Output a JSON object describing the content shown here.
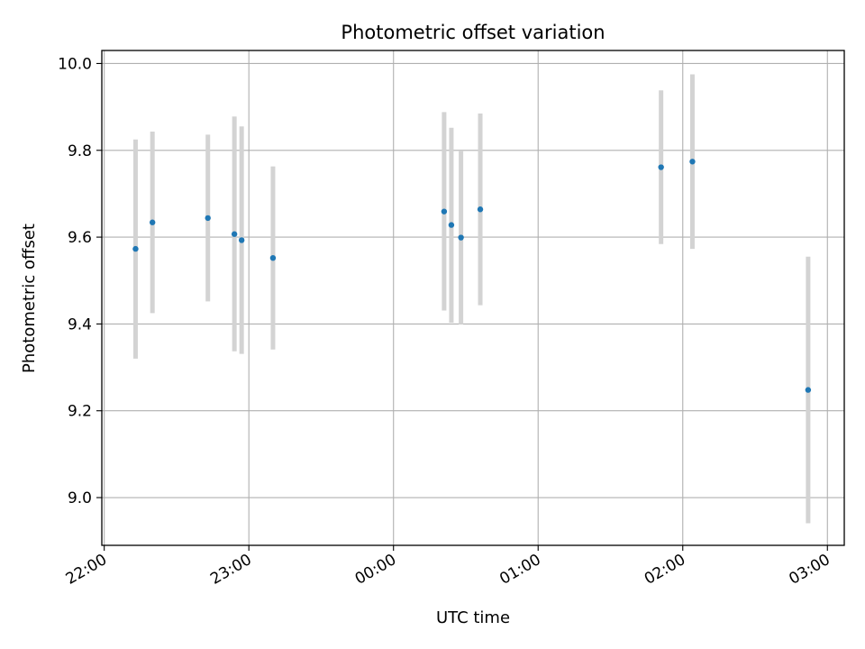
{
  "chart_data": {
    "type": "scatter",
    "title": "Photometric offset variation",
    "xlabel": "UTC time",
    "ylabel": "Photometric offset",
    "x_axis": "time",
    "xlim": [
      "21:59",
      "03:07"
    ],
    "ylim": [
      8.89,
      10.03
    ],
    "x_ticks": [
      "22:00",
      "23:00",
      "00:00",
      "01:00",
      "02:00",
      "03:00"
    ],
    "y_ticks": [
      "9.0",
      "9.2",
      "9.4",
      "9.6",
      "9.8",
      "10.0"
    ],
    "grid": true,
    "colors": {
      "point": "#1f77b4",
      "errorbar": "#d3d3d3",
      "grid": "#b0b0b0"
    },
    "points": [
      {
        "x": "22:13",
        "y": 9.573,
        "low": 9.32,
        "high": 9.825
      },
      {
        "x": "22:20",
        "y": 9.634,
        "low": 9.425,
        "high": 9.843
      },
      {
        "x": "22:43",
        "y": 9.644,
        "low": 9.452,
        "high": 9.836
      },
      {
        "x": "22:54",
        "y": 9.607,
        "low": 9.337,
        "high": 9.878
      },
      {
        "x": "22:57",
        "y": 9.593,
        "low": 9.331,
        "high": 9.855
      },
      {
        "x": "23:10",
        "y": 9.552,
        "low": 9.341,
        "high": 9.763
      },
      {
        "x": "00:21",
        "y": 9.659,
        "low": 9.431,
        "high": 9.888
      },
      {
        "x": "00:24",
        "y": 9.628,
        "low": 9.403,
        "high": 9.852
      },
      {
        "x": "00:28",
        "y": 9.599,
        "low": 9.399,
        "high": 9.798
      },
      {
        "x": "00:36",
        "y": 9.664,
        "low": 9.443,
        "high": 9.885
      },
      {
        "x": "01:51",
        "y": 9.761,
        "low": 9.584,
        "high": 9.938
      },
      {
        "x": "02:04",
        "y": 9.774,
        "low": 9.573,
        "high": 9.975
      },
      {
        "x": "02:52",
        "y": 9.248,
        "low": 8.941,
        "high": 9.555
      }
    ]
  }
}
